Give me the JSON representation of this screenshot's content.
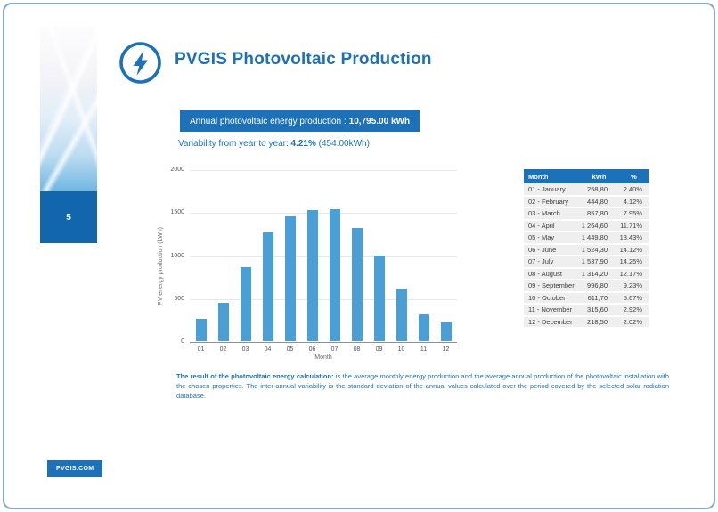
{
  "page": {
    "number": "5",
    "footer_brand": "PVGIS.COM"
  },
  "header": {
    "title": "PVGIS Photovoltaic Production",
    "icon": "lightning-bolt-icon"
  },
  "summary": {
    "banner_label": "Annual photovoltaic energy production :",
    "banner_value": "10,795.00 kWh",
    "variability_label": "Variability from year to year: ",
    "variability_value": "4.21%",
    "variability_extra": " (454.00kWh)"
  },
  "chart_data": {
    "type": "bar",
    "title": "",
    "xlabel": "Month",
    "ylabel": "PV energy production (kWh)",
    "categories": [
      "01",
      "02",
      "03",
      "04",
      "05",
      "06",
      "07",
      "08",
      "09",
      "10",
      "11",
      "12"
    ],
    "values": [
      258.8,
      444.8,
      857.8,
      1264.6,
      1449.8,
      1524.3,
      1537.9,
      1314.2,
      996.8,
      611.7,
      315.6,
      218.5
    ],
    "ylim": [
      0,
      2000
    ],
    "ytick_step": 500,
    "grid": true,
    "legend": "none",
    "bar_color": "#4a9fd7"
  },
  "table": {
    "headers": [
      "Month",
      "kWh",
      "%"
    ],
    "rows": [
      [
        "01 - January",
        "258,80",
        "2.40%"
      ],
      [
        "02 - February",
        "444,80",
        "4.12%"
      ],
      [
        "03 - March",
        "857,80",
        "7.95%"
      ],
      [
        "04 - April",
        "1 264,60",
        "11.71%"
      ],
      [
        "05 - May",
        "1 449,80",
        "13.43%"
      ],
      [
        "06 - June",
        "1 524,30",
        "14.12%"
      ],
      [
        "07 - July",
        "1 537,90",
        "14.25%"
      ],
      [
        "08 - August",
        "1 314,20",
        "12.17%"
      ],
      [
        "09 - September",
        "996,80",
        "9.23%"
      ],
      [
        "10 - October",
        "611,70",
        "5.67%"
      ],
      [
        "11 - November",
        "315,60",
        "2.92%"
      ],
      [
        "12 - December",
        "218,50",
        "2.02%"
      ]
    ]
  },
  "note": {
    "bold": "The result of the photovoltaic energy calculation:",
    "text": " is the average monthly energy production and the average annual production of the photovoltaic installation with the chosen properties. The inter-annual variability is the standard deviation of the annual values calculated over the period covered by the selected solar radiation database."
  },
  "colors": {
    "brand_blue": "#1d71b8",
    "sidebar_box_blue": "#1266ad",
    "bar_blue": "#4a9fd7",
    "page_border": "#87aac6",
    "table_row_bg": "#efefef"
  }
}
